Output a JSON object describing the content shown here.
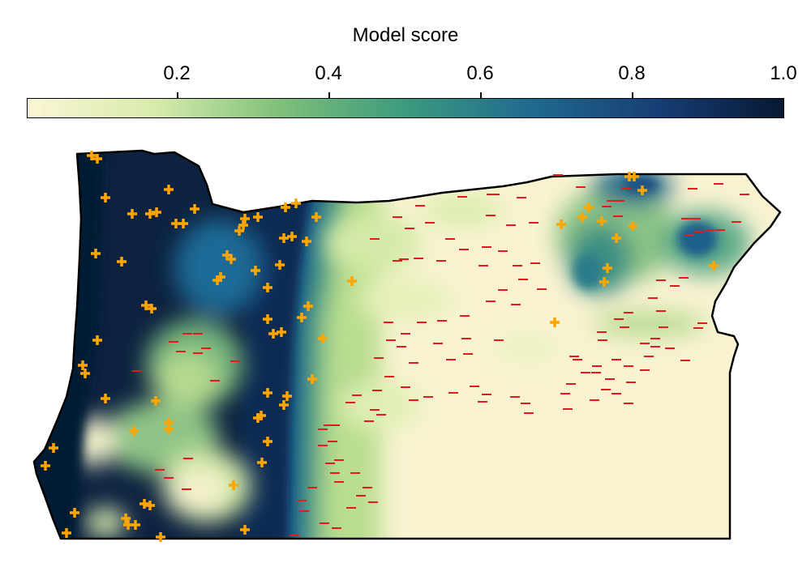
{
  "colorbar": {
    "title": "Model score",
    "ticks": [
      "0.2",
      "0.4",
      "0.6",
      "0.8",
      "1.0"
    ],
    "tick_values": [
      0.2,
      0.4,
      0.6,
      0.8,
      1.0
    ],
    "range": [
      0.0,
      1.0
    ],
    "colormap": [
      "#fbf6d6",
      "#d8ebac",
      "#7fc07a",
      "#3c9a7e",
      "#1f6a8f",
      "#173e76",
      "#071833"
    ]
  },
  "legend_symbols": {
    "presence_marker": "+",
    "presence_color": "#ffa500",
    "absence_marker": "−",
    "absence_color": "#e41a1c"
  }
}
